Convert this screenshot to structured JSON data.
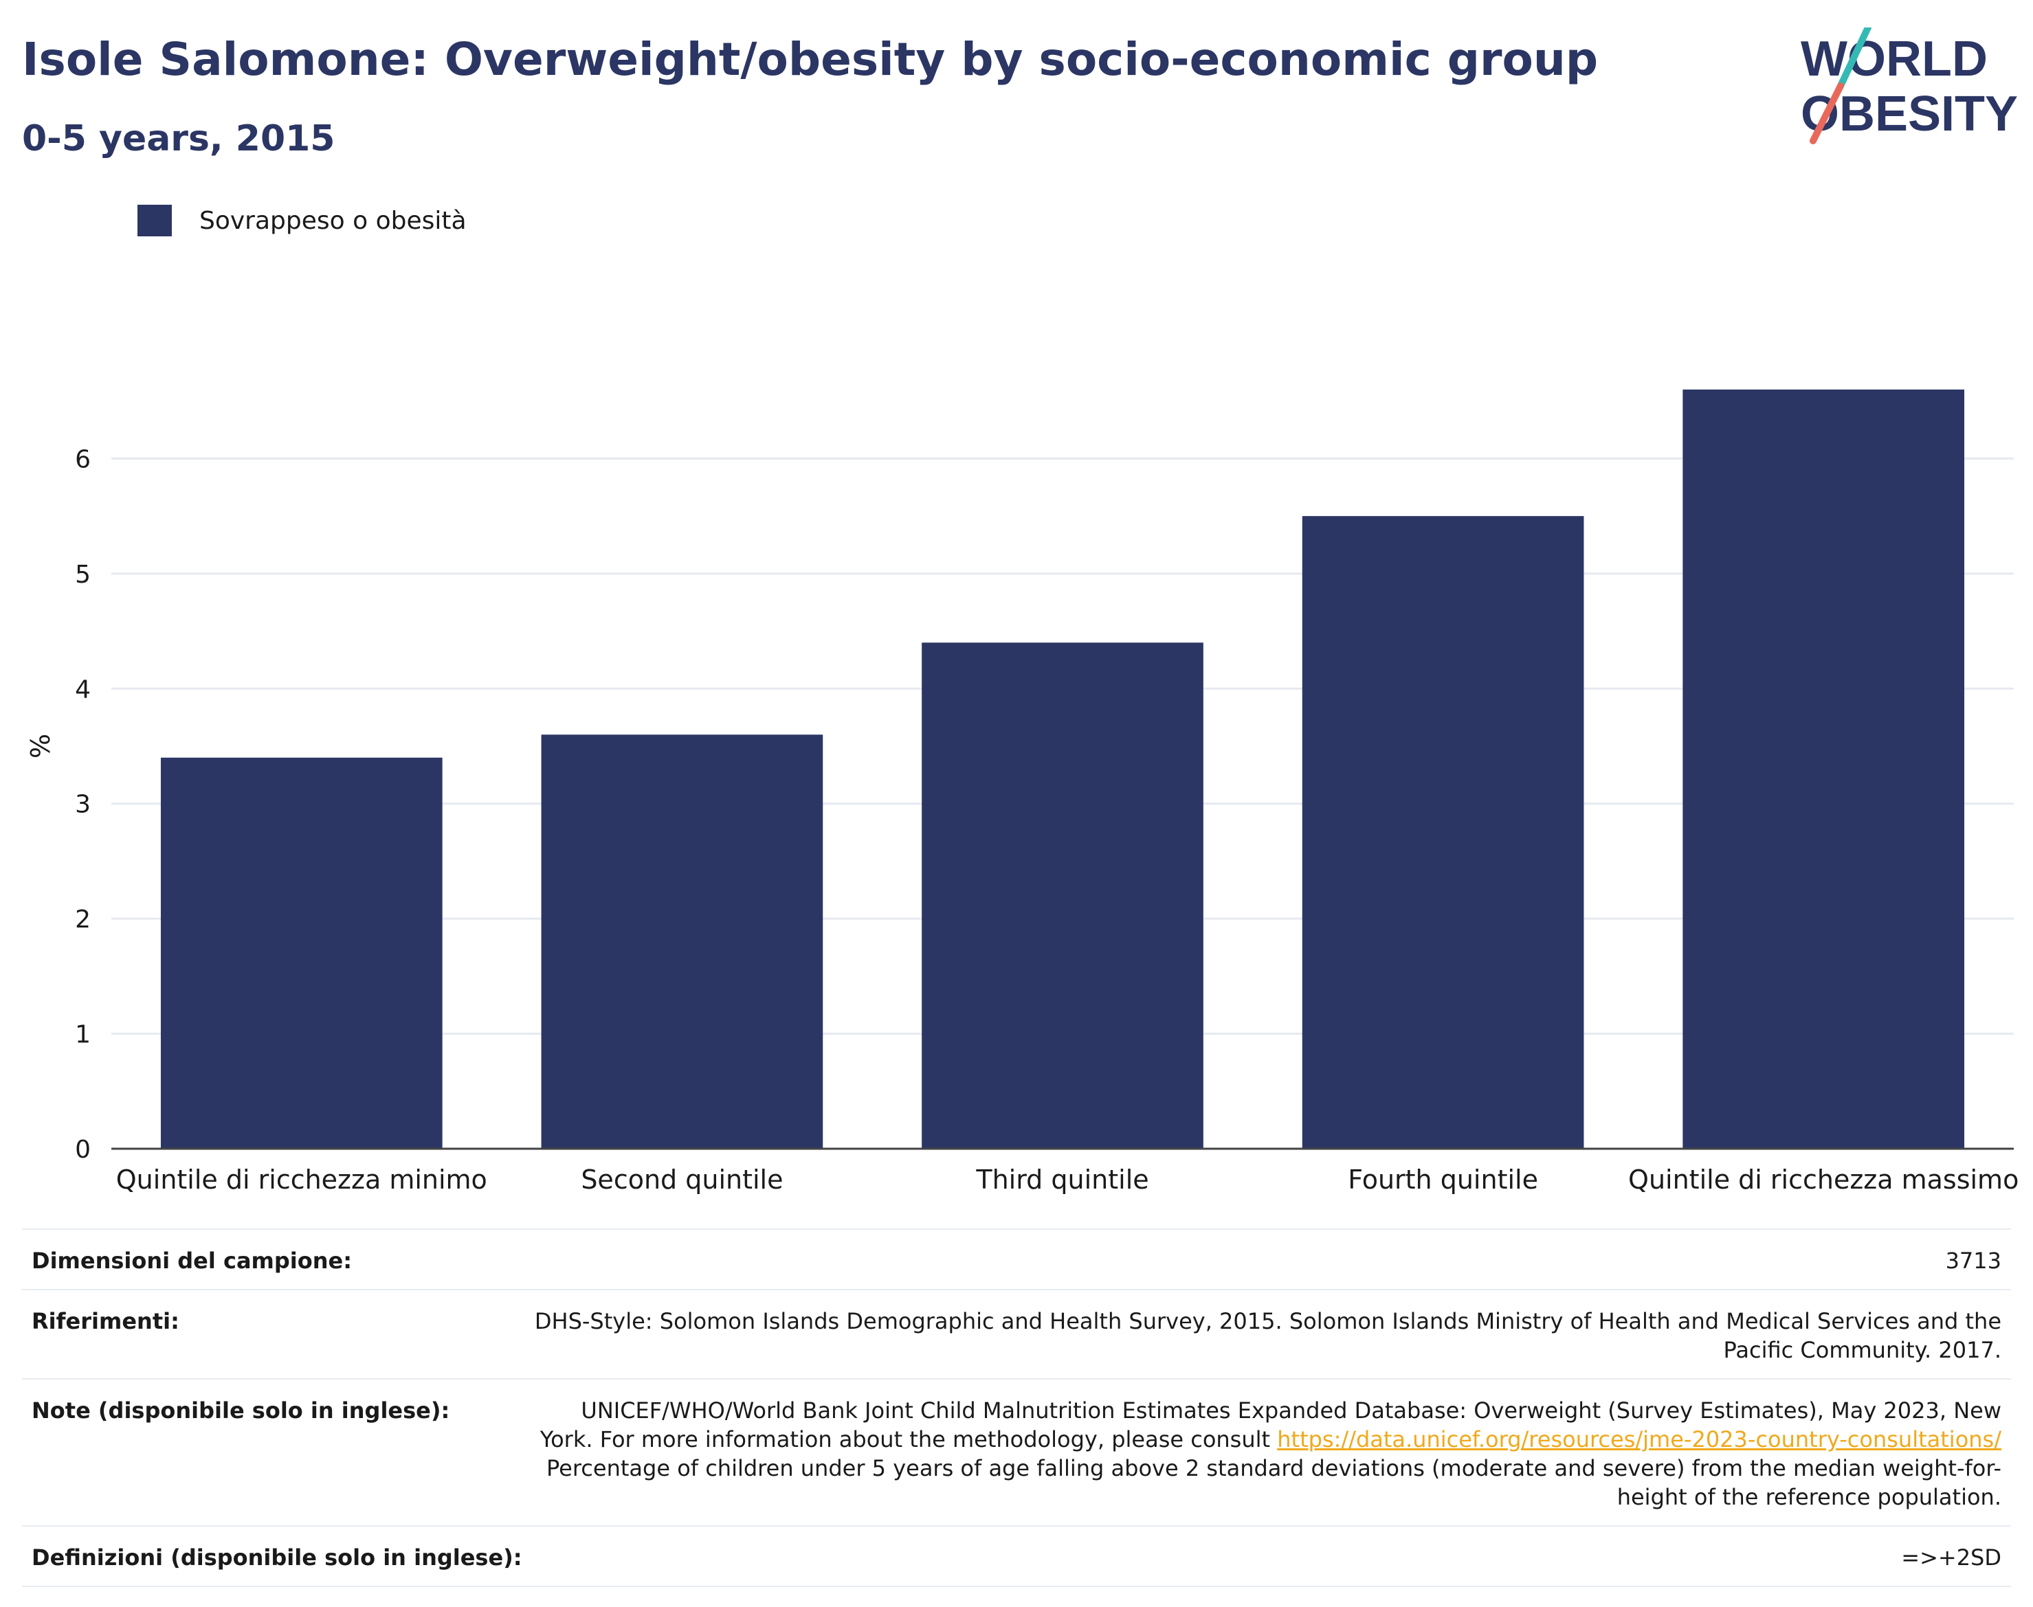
{
  "header": {
    "title": "Isole Salomone: Overweight/obesity by socio-economic group",
    "subtitle": "0-5 years, 2015"
  },
  "logo": {
    "line1": "WORLD",
    "line2": "OBESITY",
    "colors": {
      "text": "#2b3664",
      "slash_top": "#35b9b5",
      "slash_bottom": "#e8695b"
    }
  },
  "legend": {
    "label": "Sovrappeso o obesità",
    "color": "#2b3664"
  },
  "chart_data": {
    "type": "bar",
    "categories": [
      "Quintile di ricchezza minimo",
      "Second quintile",
      "Third quintile",
      "Fourth quintile",
      "Quintile di ricchezza massimo"
    ],
    "series": [
      {
        "name": "Sovrappeso o obesità",
        "values": [
          3.4,
          3.6,
          4.4,
          5.5,
          6.6
        ],
        "color": "#2b3664"
      }
    ],
    "ylabel": "%",
    "ylim": [
      0,
      7
    ],
    "yticks": [
      0,
      1,
      2,
      3,
      4,
      5,
      6
    ],
    "grid": true,
    "legend_position": "top-left"
  },
  "info": {
    "sample_size": {
      "label": "Dimensioni del campione:",
      "value": "3713"
    },
    "references": {
      "label": "Riferimenti:",
      "value": "DHS-Style: Solomon Islands Demographic and Health Survey, 2015. Solomon Islands Ministry of Health and Medical Services and the Pacific Community. 2017."
    },
    "notes": {
      "label": "Note (disponibile solo in inglese):",
      "text_before": "UNICEF/WHO/World Bank Joint Child Malnutrition Estimates Expanded Database: Overweight (Survey Estimates), May 2023, New York. For more information about the methodology, please consult ",
      "link": "https://data.unicef.org/resources/jme-2023-country-consultations/",
      "text_after": " Percentage of children under 5 years of age falling above 2 standard deviations (moderate and severe) from the median weight-for-height of the reference population."
    },
    "definitions": {
      "label": "Definizioni (disponibile solo in inglese):",
      "value": "=>+2SD"
    }
  }
}
